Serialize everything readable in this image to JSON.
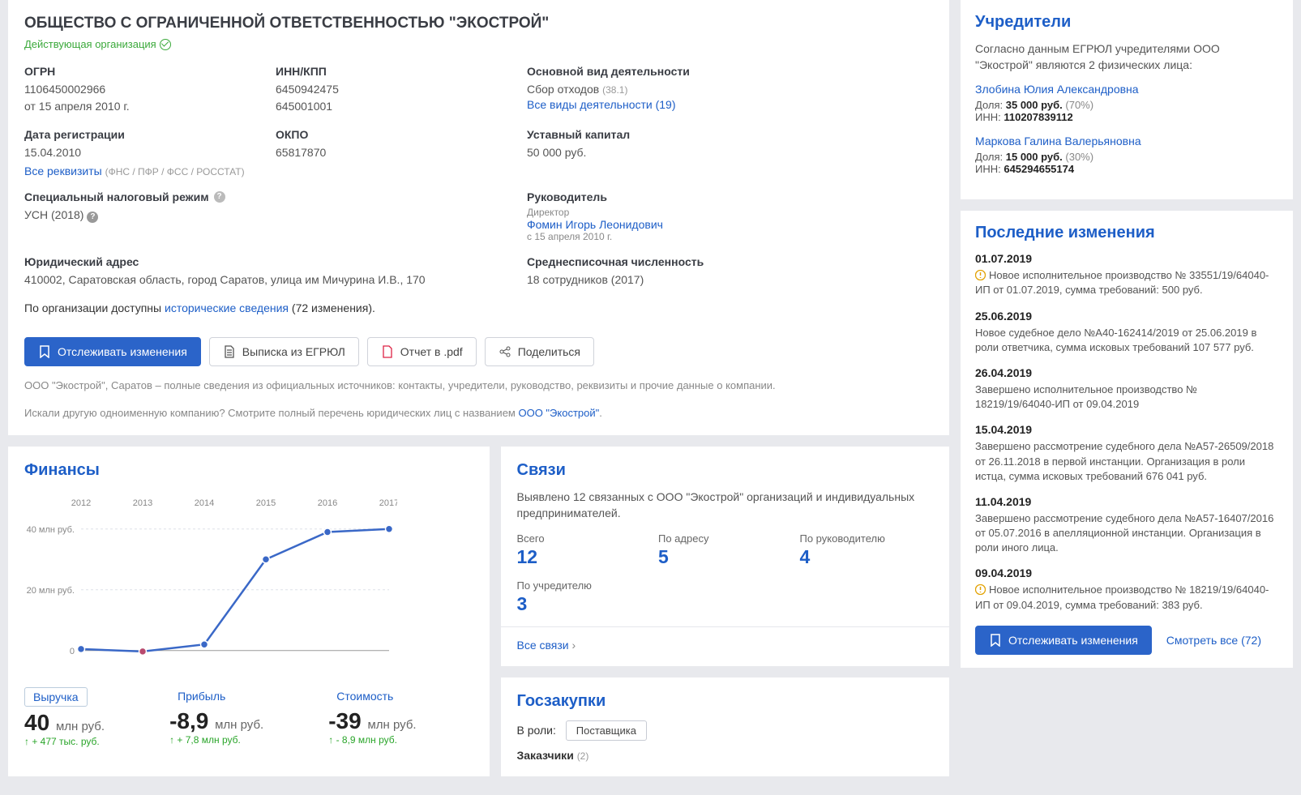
{
  "company": {
    "title": "ОБЩЕСТВО С ОГРАНИЧЕННОЙ ОТВЕТСТВЕННОСТЬЮ \"ЭКОСТРОЙ\"",
    "status": "Действующая организация",
    "ogrn_label": "ОГРН",
    "ogrn": "1106450002966",
    "ogrn_date": "от 15 апреля 2010 г.",
    "inn_label": "ИНН/КПП",
    "inn": "6450942475",
    "kpp": "645001001",
    "activity_label": "Основной вид деятельности",
    "activity": "Сбор отходов",
    "activity_code": "(38.1)",
    "activity_all": "Все виды деятельности (19)",
    "regdate_label": "Дата регистрации",
    "regdate": "15.04.2010",
    "okpo_label": "ОКПО",
    "okpo": "65817870",
    "capital_label": "Уставный капитал",
    "capital": "50 000 руб.",
    "all_req": "Все реквизиты",
    "all_req_note": "(ФНС / ПФР / ФСС / РОССТАТ)",
    "tax_label": "Специальный налоговый режим",
    "tax_value": "УСН (2018)",
    "director_label": "Руководитель",
    "director_role": "Директор",
    "director_name": "Фомин Игорь Леонидович",
    "director_since": "с 15 апреля 2010 г.",
    "address_label": "Юридический адрес",
    "address": "410002, Саратовская область, город Саратов, улица им Мичурина И.В., 170",
    "staff_label": "Среднесписочная численность",
    "staff": "18 сотрудников (2017)",
    "history_prefix": "По организации доступны ",
    "history_link": "исторические сведения",
    "history_suffix": " (72 изменения).",
    "desc1": "ООО \"Экострой\", Саратов – полные сведения из официальных источников: контакты, учредители, руководство, реквизиты и прочие данные о компании.",
    "desc2_prefix": "Искали другую одноименную компанию? Смотрите полный перечень юридических лиц с названием ",
    "desc2_link": "ООО \"Экострой\"",
    "desc2_suffix": "."
  },
  "buttons": {
    "track": "Отслеживать изменения",
    "egrul": "Выписка из ЕГРЮЛ",
    "pdf": "Отчет в .pdf",
    "share": "Поделиться"
  },
  "finance": {
    "title": "Финансы",
    "chart": {
      "type": "line",
      "years": [
        "2012",
        "2013",
        "2014",
        "2015",
        "2016",
        "2017"
      ],
      "values_mln": [
        0.5,
        -0.3,
        2,
        30,
        39,
        40
      ],
      "ylabels": [
        "0",
        "20 млн руб.",
        "40 млн руб."
      ],
      "ymax": 45,
      "ymin": -3,
      "line_color": "#3a68c7",
      "point_fill": "#3a68c7",
      "neg_point_fill": "#b84a6e",
      "grid_color": "#dde1e8",
      "axis_font": 11
    },
    "tabs": {
      "revenue_label": "Выручка",
      "revenue_value": "40",
      "revenue_unit": "млн руб.",
      "revenue_delta": "+ 477 тыс. руб.",
      "profit_label": "Прибыль",
      "profit_value": "-8,9",
      "profit_unit": "млн руб.",
      "profit_delta": "+ 7,8 млн руб.",
      "cost_label": "Стоимость",
      "cost_value": "-39",
      "cost_unit": "млн руб.",
      "cost_delta": "- 8,9 млн руб."
    }
  },
  "connections": {
    "title": "Связи",
    "intro": "Выявлено 12 связанных с ООО \"Экострой\" организаций и индивидуальных предпринимателей.",
    "total_label": "Всего",
    "total": "12",
    "addr_label": "По адресу",
    "addr": "5",
    "dir_label": "По руководителю",
    "dir": "4",
    "founder_label": "По учредителю",
    "founder": "3",
    "all_link": "Все связи"
  },
  "procurement": {
    "title": "Госзакупки",
    "role_label": "В роли:",
    "role_value": "Поставщика",
    "customers_label": "Заказчики",
    "customers_count": "(2)"
  },
  "founders": {
    "title": "Учредители",
    "intro": "Согласно данным ЕГРЮЛ учредителями ООО \"Экострой\" являются 2 физических лица:",
    "list": [
      {
        "name": "Злобина Юлия Александровна",
        "share_label": "Доля:",
        "share": "35 000 руб.",
        "pct": "(70%)",
        "inn_label": "ИНН:",
        "inn": "110207839112"
      },
      {
        "name": "Маркова Галина Валерьяновна",
        "share_label": "Доля:",
        "share": "15 000 руб.",
        "pct": "(30%)",
        "inn_label": "ИНН:",
        "inn": "645294655174"
      }
    ]
  },
  "changes": {
    "title": "Последние изменения",
    "items": [
      {
        "date": "01.07.2019",
        "warn": true,
        "text": "Новое исполнительное производство № 33551/19/64040-ИП от 01.07.2019, сумма требований: 500 руб."
      },
      {
        "date": "25.06.2019",
        "warn": false,
        "text": "Новое судебное дело №А40-162414/2019 от 25.06.2019 в роли ответчика, сумма исковых требований 107 577 руб."
      },
      {
        "date": "26.04.2019",
        "warn": false,
        "text": "Завершено исполнительное производство № 18219/19/64040-ИП от 09.04.2019"
      },
      {
        "date": "15.04.2019",
        "warn": false,
        "text": "Завершено рассмотрение судебного дела №А57-26509/2018 от 26.11.2018 в первой инстанции. Организация в роли истца, сумма исковых требований 676 041 руб."
      },
      {
        "date": "11.04.2019",
        "warn": false,
        "text": "Завершено рассмотрение судебного дела №А57-16407/2016 от 05.07.2016 в апелляционной инстанции. Организация в роли иного лица."
      },
      {
        "date": "09.04.2019",
        "warn": true,
        "text": "Новое исполнительное производство № 18219/19/64040-ИП от 09.04.2019, сумма требований: 383 руб."
      }
    ],
    "track": "Отслеживать изменения",
    "all": "Смотреть все (72)"
  }
}
